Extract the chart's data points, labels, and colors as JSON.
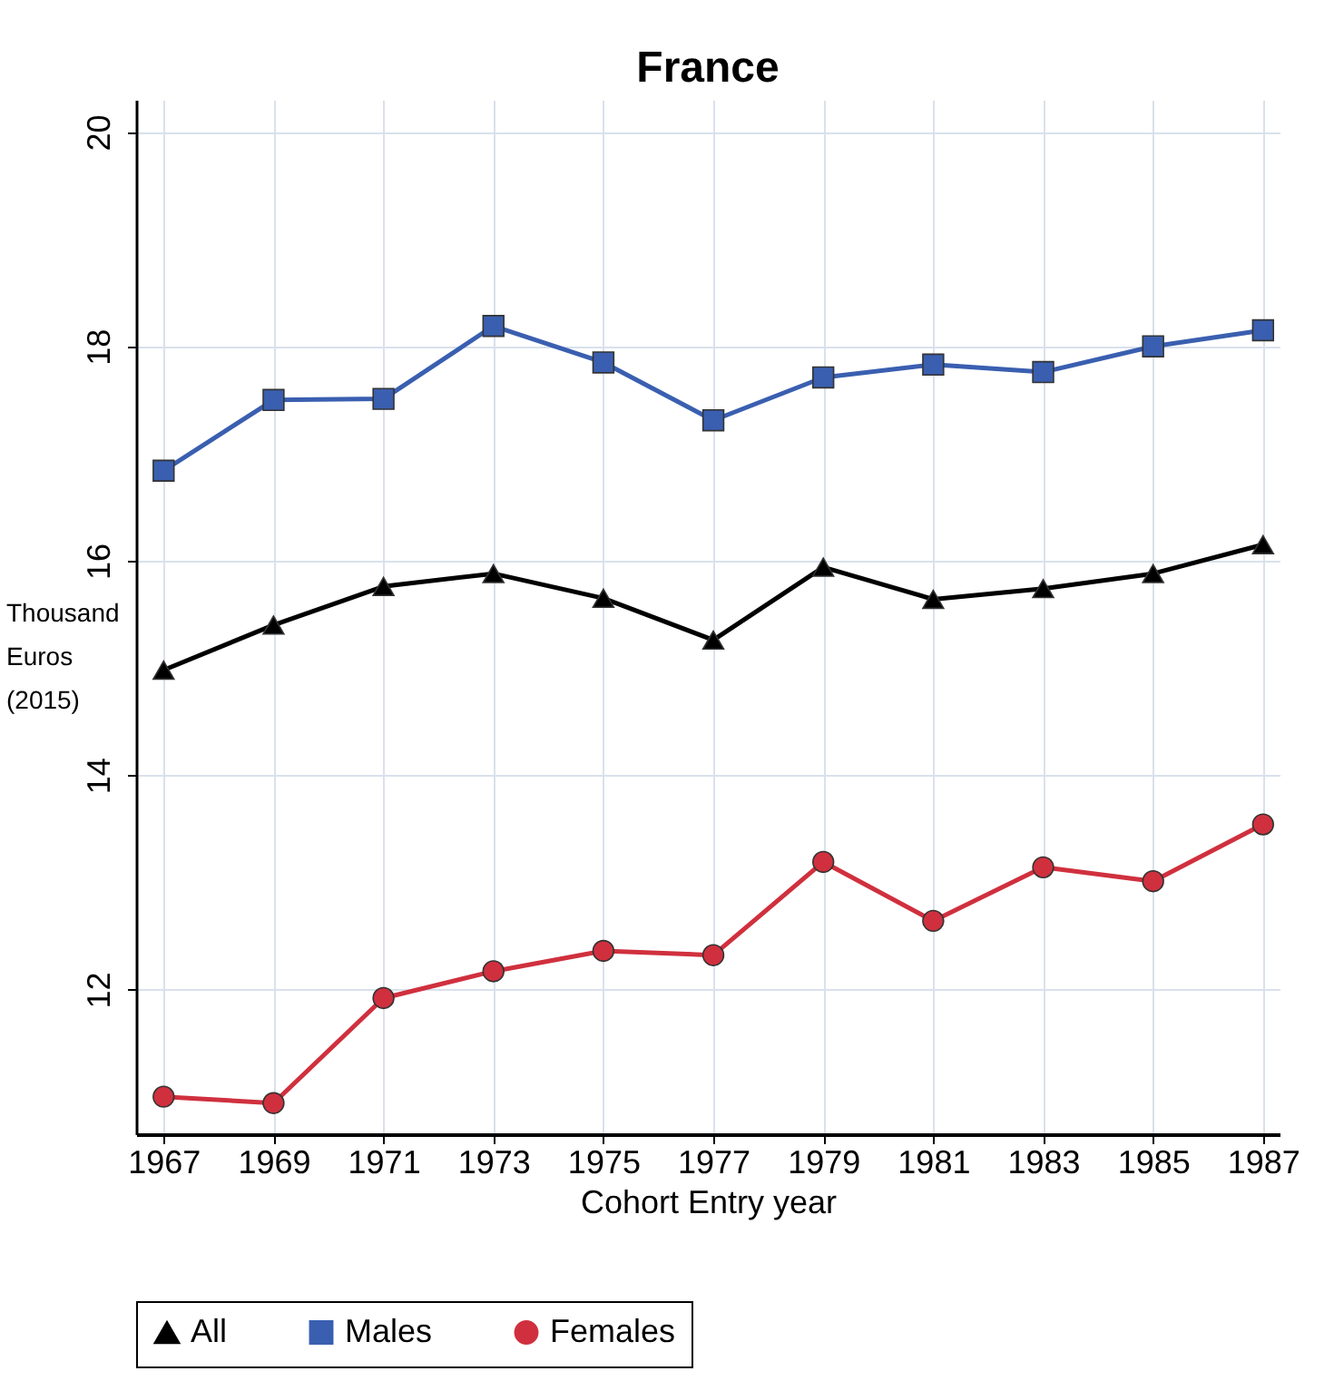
{
  "chart_data": {
    "type": "line",
    "title": "France",
    "xlabel": "Cohort Entry year",
    "ylabel": "Thousand Euros (2015)",
    "x": [
      1967,
      1969,
      1971,
      1973,
      1975,
      1977,
      1979,
      1981,
      1983,
      1985,
      1987
    ],
    "xlim": [
      1966.5,
      1987.3
    ],
    "xticks": [
      1967,
      1969,
      1971,
      1973,
      1975,
      1977,
      1979,
      1981,
      1983,
      1985,
      1987
    ],
    "ylim": [
      10.65,
      20.3
    ],
    "yticks": [
      12,
      14,
      16,
      18,
      20
    ],
    "grid": true,
    "legend": "bottom",
    "series": [
      {
        "name": "All",
        "color": "#000000",
        "marker": "triangle",
        "values": [
          14.98,
          15.4,
          15.76,
          15.88,
          15.65,
          15.26,
          15.94,
          15.64,
          15.74,
          15.88,
          16.15
        ]
      },
      {
        "name": "Males",
        "color": "#3a5fb0",
        "marker": "square",
        "values": [
          16.84,
          17.5,
          17.51,
          18.19,
          17.85,
          17.31,
          17.71,
          17.83,
          17.76,
          18.0,
          18.15
        ]
      },
      {
        "name": "Females",
        "color": "#d0303e",
        "marker": "circle",
        "values": [
          11.0,
          10.94,
          11.92,
          12.17,
          12.36,
          12.32,
          13.19,
          12.64,
          13.14,
          13.01,
          13.54
        ]
      }
    ]
  }
}
